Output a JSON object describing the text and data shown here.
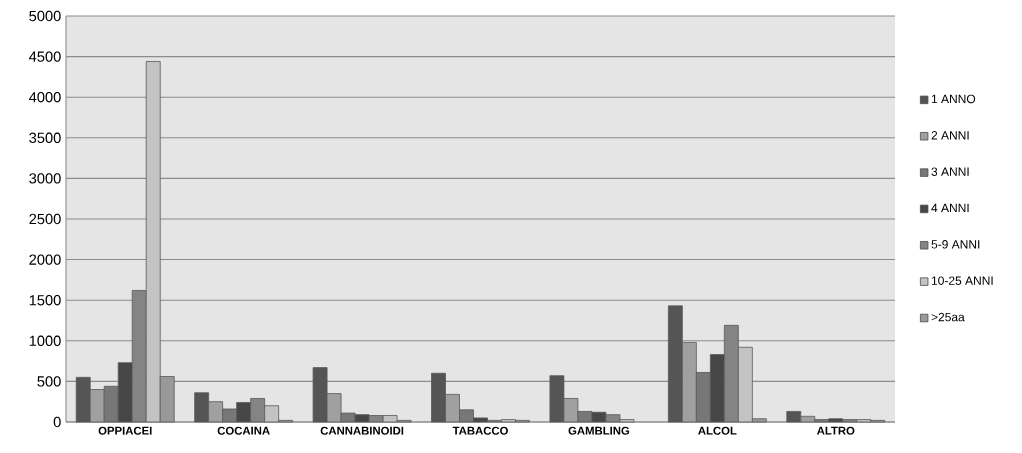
{
  "chart_data": {
    "type": "bar",
    "categories": [
      "OPPIACEI",
      "COCAINA",
      "CANNABINOIDI",
      "TABACCO",
      "GAMBLING",
      "ALCOL",
      "ALTRO"
    ],
    "series": [
      {
        "name": "1 ANNO",
        "color": "#555555",
        "values": [
          550,
          360,
          670,
          600,
          570,
          1430,
          130
        ]
      },
      {
        "name": "2 ANNI",
        "color": "#a0a0a0",
        "values": [
          400,
          250,
          350,
          340,
          290,
          980,
          70
        ]
      },
      {
        "name": "3 ANNI",
        "color": "#777777",
        "values": [
          440,
          160,
          110,
          150,
          130,
          610,
          30
        ]
      },
      {
        "name": "4 ANNI",
        "color": "#474747",
        "values": [
          730,
          240,
          90,
          50,
          120,
          830,
          40
        ]
      },
      {
        "name": "5-9 ANNI",
        "color": "#848484",
        "values": [
          1620,
          290,
          80,
          20,
          90,
          1190,
          30
        ]
      },
      {
        "name": "10-25 ANNI",
        "color": "#c3c3c3",
        "values": [
          4440,
          200,
          80,
          30,
          30,
          920,
          30
        ]
      },
      {
        "name": ">25aa",
        "color": "#999999",
        "values": [
          560,
          20,
          20,
          20,
          null,
          40,
          20
        ]
      }
    ],
    "ylim": [
      0,
      5000
    ],
    "yticks": [
      0,
      500,
      1000,
      1500,
      2000,
      2500,
      3000,
      3500,
      4000,
      4500,
      5000
    ],
    "grid": "y",
    "legend": "right"
  }
}
